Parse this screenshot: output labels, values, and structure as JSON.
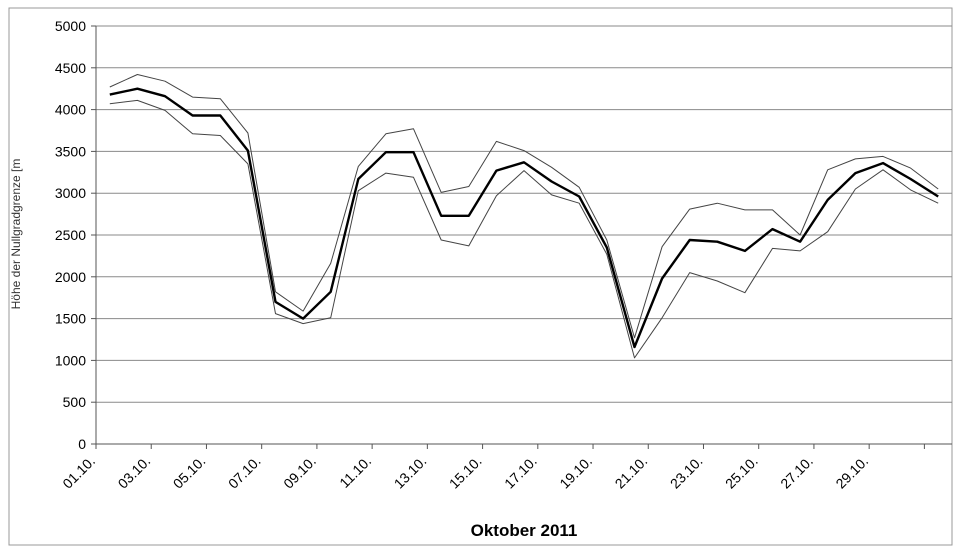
{
  "chart_data": {
    "type": "line",
    "xlabel": "Oktober 2011",
    "ylabel": "Höhe der Nullgradgrenze [m",
    "ylim": [
      0,
      5000
    ],
    "y_ticks": [
      0,
      500,
      1000,
      1500,
      2000,
      2500,
      3000,
      3500,
      4000,
      4500,
      5000
    ],
    "categories": [
      "01.10.",
      "02.10.",
      "03.10.",
      "04.10.",
      "05.10.",
      "06.10.",
      "07.10.",
      "08.10.",
      "09.10.",
      "10.10.",
      "11.10.",
      "12.10.",
      "13.10.",
      "14.10.",
      "15.10.",
      "16.10.",
      "17.10.",
      "18.10.",
      "19.10.",
      "20.10.",
      "21.10.",
      "22.10.",
      "23.10.",
      "24.10.",
      "25.10.",
      "26.10.",
      "27.10.",
      "28.10.",
      "29.10.",
      "30.10.",
      "31.10."
    ],
    "x_tick_labels": [
      "01.10.",
      "03.10.",
      "05.10.",
      "07.10.",
      "09.10.",
      "11.10.",
      "13.10.",
      "15.10.",
      "17.10.",
      "19.10.",
      "21.10.",
      "23.10.",
      "25.10.",
      "27.10.",
      "29.10."
    ],
    "grid": true,
    "legend": "none",
    "series": [
      {
        "role": "upper",
        "color": "#444444",
        "values": [
          4270,
          4420,
          4340,
          4150,
          4130,
          3720,
          1820,
          1590,
          2160,
          3320,
          3710,
          3770,
          3010,
          3080,
          3620,
          3510,
          3310,
          3070,
          2440,
          1270,
          2360,
          2810,
          2880,
          2800,
          2800,
          2500,
          3280,
          3410,
          3440,
          3300,
          3050
        ]
      },
      {
        "role": "mean",
        "color": "#000000",
        "values": [
          4180,
          4250,
          4160,
          3930,
          3930,
          3510,
          1700,
          1500,
          1820,
          3170,
          3490,
          3490,
          2730,
          2730,
          3270,
          3370,
          3140,
          2960,
          2350,
          1160,
          1980,
          2440,
          2420,
          2310,
          2570,
          2420,
          2920,
          3240,
          3360,
          3170,
          2960
        ]
      },
      {
        "role": "lower",
        "color": "#444444",
        "values": [
          4070,
          4110,
          3990,
          3710,
          3690,
          3350,
          1560,
          1440,
          1510,
          3030,
          3240,
          3190,
          2440,
          2370,
          2970,
          3270,
          2980,
          2880,
          2270,
          1030,
          1510,
          2050,
          1950,
          1810,
          2340,
          2310,
          2540,
          3050,
          3280,
          3040,
          2880
        ]
      }
    ]
  }
}
